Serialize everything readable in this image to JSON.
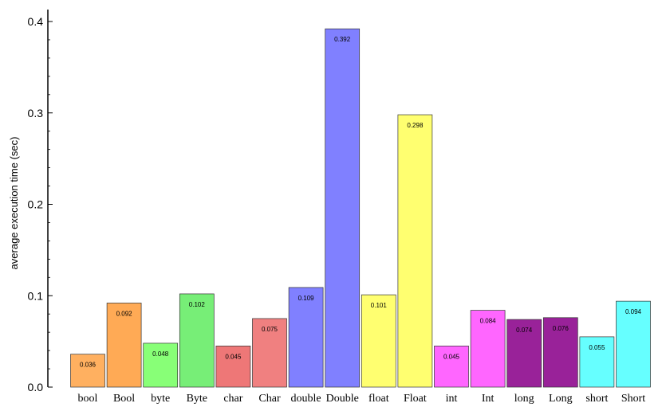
{
  "chart_data": {
    "type": "bar",
    "title": "",
    "xlabel": "",
    "ylabel": "average execution time (sec)",
    "ylim": [
      0,
      0.4
    ],
    "y_ticks": [
      "0.0",
      "0.1",
      "0.2",
      "0.3",
      "0.4"
    ],
    "y_tick_values": [
      0,
      0.1,
      0.2,
      0.3,
      0.4
    ],
    "grid": false,
    "legend": "none",
    "categories": [
      "bool",
      "Bool",
      "byte",
      "Byte",
      "char",
      "Char",
      "double",
      "Double",
      "float",
      "Float",
      "int",
      "Int",
      "long",
      "Long",
      "short",
      "Short"
    ],
    "values": [
      0.036,
      0.092,
      0.048,
      0.102,
      0.045,
      0.075,
      0.109,
      0.392,
      0.101,
      0.298,
      0.045,
      0.084,
      0.074,
      0.076,
      0.055,
      0.094
    ],
    "data_labels": [
      "0.036",
      "0.092",
      "0.048",
      "0.102",
      "0.045",
      "0.075",
      "0.109",
      "0.392",
      "0.101",
      "0.298",
      "0.045",
      "0.084",
      "0.074",
      "0.076",
      "0.055",
      "0.094"
    ],
    "colors": [
      "#ffb060",
      "#ffaa55",
      "#88ff77",
      "#77ee77",
      "#ee7777",
      "#f08080",
      "#8080ff",
      "#8080ff",
      "#ffff70",
      "#ffff70",
      "#ff66ff",
      "#ff66ff",
      "#992299",
      "#992299",
      "#66ffff",
      "#66ffff"
    ]
  }
}
